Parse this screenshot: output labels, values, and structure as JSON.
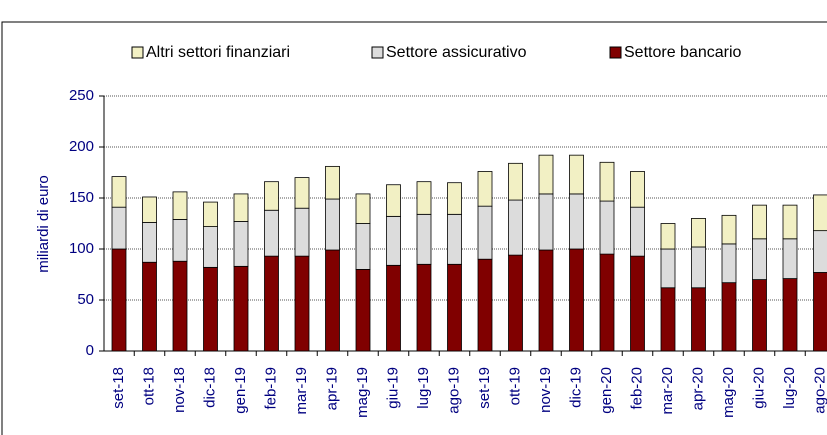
{
  "chart_data": {
    "type": "stacked_bar",
    "y_label": "miliardi di euro",
    "categories": [
      "set-18",
      "ott-18",
      "nov-18",
      "dic-18",
      "gen-19",
      "feb-19",
      "mar-19",
      "apr-19",
      "mag-19",
      "giu-19",
      "lug-19",
      "ago-19",
      "set-19",
      "ott-19",
      "nov-19",
      "dic-19",
      "gen-20",
      "feb-20",
      "mar-20",
      "apr-20",
      "mag-20",
      "giu-20",
      "lug-20",
      "ago-20"
    ],
    "series": [
      {
        "name": "Settore bancario",
        "color": "#800000",
        "values": [
          100,
          87,
          88,
          82,
          83,
          93,
          93,
          99,
          80,
          84,
          85,
          85,
          90,
          94,
          99,
          100,
          95,
          93,
          62,
          62,
          67,
          70,
          71,
          77
        ]
      },
      {
        "name": "Settore assicurativo",
        "color": "#dcdcdc",
        "values": [
          41,
          39,
          41,
          40,
          44,
          45,
          47,
          50,
          45,
          48,
          49,
          49,
          52,
          54,
          55,
          54,
          52,
          48,
          38,
          40,
          38,
          40,
          39,
          41
        ]
      },
      {
        "name": "Altri settori finanziari",
        "color": "#f2f0c4",
        "values": [
          30,
          25,
          27,
          24,
          27,
          28,
          30,
          32,
          29,
          31,
          32,
          31,
          34,
          36,
          38,
          38,
          38,
          35,
          25,
          28,
          28,
          33,
          33,
          35
        ]
      }
    ],
    "ylim": [
      0,
      250
    ],
    "yticks": [
      0,
      50,
      100,
      150,
      200,
      250
    ],
    "grid": true
  }
}
